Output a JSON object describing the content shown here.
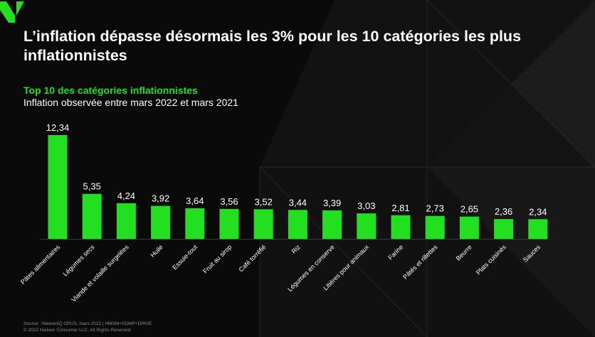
{
  "header": {
    "title": "L’inflation dépasse désormais les 3% pour les 10 catégories les plus inflationnistes",
    "subtitle": "Top 10 des catégories inflationnistes",
    "subtitle2": "Inflation observée entre mars 2022 et mars 2021"
  },
  "footer": {
    "source": "Source : NielsenIQ OPUS, mars 2022 | HMSM+SDMP+DRIVE",
    "copyright": "© 2022 Nielsen Consumer LLC. All Rights Reserved."
  },
  "colors": {
    "accent": "#22e01f",
    "background": "#0a0a0a"
  },
  "chart_data": {
    "type": "bar",
    "categories": [
      "Pâtes alimentaires",
      "Légumes secs",
      "Viande et volaille surgelées",
      "Huile",
      "Essuie-tout",
      "Fruit au sirop",
      "Café torréfié",
      "Riz",
      "Légumes en conserve",
      "Litières pour animaux",
      "Farine",
      "Pâtés et rillettes",
      "Beurre",
      "Plats cuisinés",
      "Sauces"
    ],
    "values": [
      12.34,
      5.35,
      4.24,
      3.92,
      3.64,
      3.56,
      3.52,
      3.44,
      3.39,
      3.03,
      2.81,
      2.73,
      2.65,
      2.36,
      2.34
    ],
    "labels": [
      "12,34",
      "5,35",
      "4,24",
      "3,92",
      "3,64",
      "3,56",
      "3,52",
      "3,44",
      "3,39",
      "3,03",
      "2,81",
      "2,73",
      "2,65",
      "2,36",
      "2,34"
    ],
    "ylim": [
      0,
      12.34
    ],
    "grid": false,
    "color": "#22e01f"
  }
}
